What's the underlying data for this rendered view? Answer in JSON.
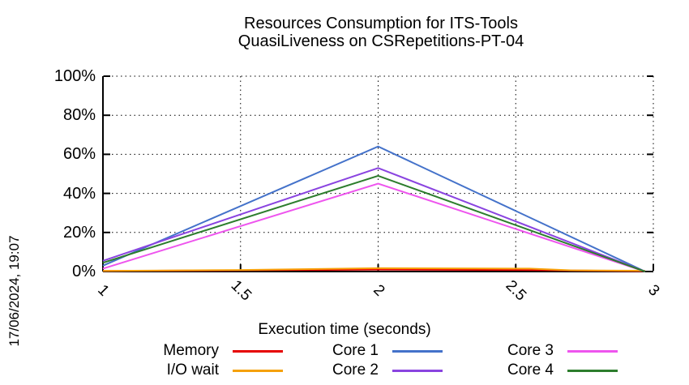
{
  "title": {
    "line1": "Resources Consumption for ITS-Tools",
    "line2": "QuasiLiveness on CSRepetitions-PT-04"
  },
  "timestamp": "17/06/2024, 19:07",
  "xlabel": "Execution time (seconds)",
  "colors": {
    "memory": "#e60000",
    "io_wait": "#f5a10a",
    "core1": "#4472ca",
    "core2": "#8a44e0",
    "core3": "#ee55ee",
    "core4": "#2d7d2d",
    "grid": "#000000",
    "axis": "#000000"
  },
  "chart_data": {
    "type": "line",
    "title": "Resources Consumption for ITS-Tools / QuasiLiveness on CSRepetitions-PT-04",
    "xlabel": "Execution time (seconds)",
    "ylabel": "",
    "xlim": [
      1,
      3
    ],
    "ylim": [
      0,
      100
    ],
    "grid": true,
    "legend_position": "bottom",
    "x_ticks": {
      "values": [
        1,
        1.5,
        2,
        2.5,
        3
      ],
      "labels": [
        "1",
        "1.5",
        "2",
        "2.5",
        "3"
      ]
    },
    "y_ticks": {
      "values": [
        0,
        20,
        40,
        60,
        80,
        100
      ],
      "labels": [
        "0%",
        "20%",
        "40%",
        "60%",
        "80%",
        "100%"
      ]
    },
    "series": [
      {
        "name": "Memory",
        "color": "#e60000",
        "points": [
          [
            1,
            0.3
          ],
          [
            1.5,
            0.6
          ],
          [
            2,
            1.0
          ],
          [
            2.5,
            0.8
          ],
          [
            2.97,
            0.2
          ]
        ]
      },
      {
        "name": "I/O wait",
        "color": "#f5a10a",
        "points": [
          [
            1,
            0.3
          ],
          [
            1.5,
            0.8
          ],
          [
            2,
            1.7
          ],
          [
            2.55,
            1.5
          ],
          [
            2.7,
            0.6
          ],
          [
            2.97,
            0.4
          ]
        ]
      },
      {
        "name": "Core 1",
        "color": "#4472ca",
        "points": [
          [
            1,
            3
          ],
          [
            2,
            64
          ],
          [
            2.97,
            0
          ]
        ]
      },
      {
        "name": "Core 2",
        "color": "#8a44e0",
        "points": [
          [
            1,
            5.5
          ],
          [
            2,
            53
          ],
          [
            2.97,
            0
          ]
        ]
      },
      {
        "name": "Core 3",
        "color": "#ee55ee",
        "points": [
          [
            1,
            1.5
          ],
          [
            2,
            45
          ],
          [
            2.97,
            0
          ]
        ]
      },
      {
        "name": "Core 4",
        "color": "#2d7d2d",
        "points": [
          [
            1,
            4.5
          ],
          [
            2,
            49
          ],
          [
            2.97,
            0
          ]
        ]
      }
    ]
  },
  "legend": {
    "columns": [
      [
        "Memory",
        "I/O wait"
      ],
      [
        "Core 1",
        "Core 2"
      ],
      [
        "Core 3",
        "Core 4"
      ]
    ]
  }
}
